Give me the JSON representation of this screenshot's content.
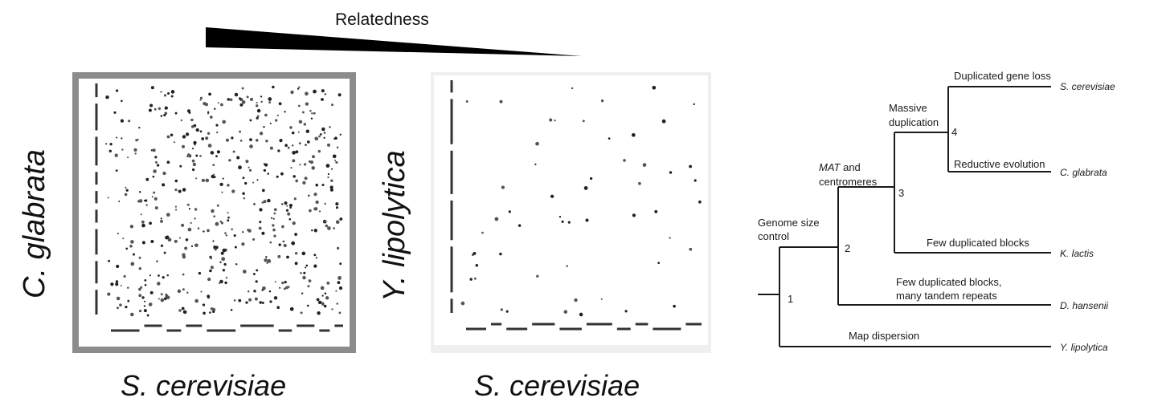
{
  "header": {
    "gradient_label": "Relatedness"
  },
  "dotplots": [
    {
      "y_species": "C. glabrata",
      "x_species": "S. cerevisiae"
    },
    {
      "y_species": "Y. lipolytica",
      "x_species": "S. cerevisiae"
    }
  ],
  "tree": {
    "nodes": [
      "1",
      "2",
      "3",
      "4"
    ],
    "events": {
      "genome_size_1": "Genome size",
      "genome_size_2": "control",
      "mat_1_italic": "MAT",
      "mat_1_rest": " and",
      "mat_2": "centromeres",
      "massive_1": "Massive",
      "massive_2": "duplication",
      "dup_gene_loss": "Duplicated gene loss",
      "reductive": "Reductive evolution",
      "few_blocks": "Few duplicated blocks",
      "few_blocks_tandem_1": "Few duplicated blocks,",
      "few_blocks_tandem_2": "many tandem repeats",
      "map_dispersion": "Map dispersion"
    },
    "leaves": [
      "S. cerevisiae",
      "C. glabrata",
      "K. lactis",
      "D. hansenii",
      "Y. lipolytica"
    ]
  },
  "colors": {
    "line": "#1a1a1a",
    "dot": "#333333",
    "frame1": "#8c8c8c",
    "frame2": "#efefef"
  }
}
